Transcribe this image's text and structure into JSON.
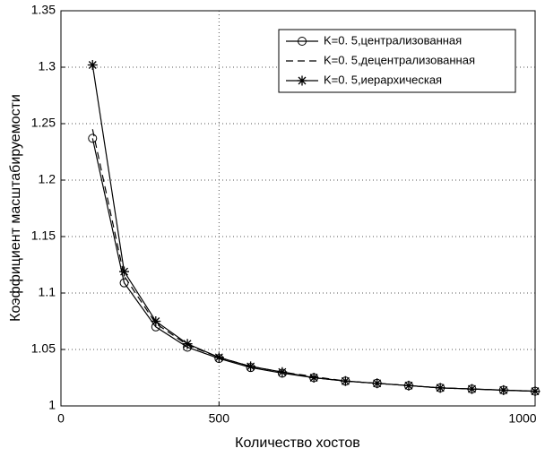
{
  "chart_data": {
    "type": "line",
    "xlabel": "Количество хостов",
    "ylabel": "Коэффициент масштабируемости",
    "x": [
      300,
      350,
      400,
      450,
      500,
      550,
      600,
      650,
      700,
      750,
      800,
      850,
      900,
      950,
      1000
    ],
    "series": [
      {
        "name": "K=0. 5,централизованная",
        "color": "#000000",
        "marker": "circle",
        "dash": "solid",
        "values": [
          1.237,
          1.109,
          1.07,
          1.052,
          1.042,
          1.034,
          1.029,
          1.025,
          1.022,
          1.02,
          1.018,
          1.016,
          1.015,
          1.014,
          1.013
        ]
      },
      {
        "name": "K=0. 5,децентрализованная",
        "color": "#000000",
        "marker": "none",
        "dash": "dashed",
        "values": [
          1.245,
          1.115,
          1.073,
          1.054,
          1.043,
          1.035,
          1.03,
          1.026,
          1.022,
          1.02,
          1.018,
          1.016,
          1.015,
          1.014,
          1.013
        ]
      },
      {
        "name": "K=0. 5,иерархическая",
        "color": "#000000",
        "marker": "star",
        "dash": "solid",
        "values": [
          1.302,
          1.119,
          1.075,
          1.055,
          1.043,
          1.035,
          1.03,
          1.025,
          1.022,
          1.02,
          1.018,
          1.016,
          1.015,
          1.014,
          1.013
        ]
      }
    ],
    "xlim": [
      250,
      1000
    ],
    "xticks": [
      {
        "value": 250,
        "label": "0"
      },
      500,
      1000
    ],
    "ylim": [
      1,
      1.35
    ],
    "yticks": [
      1,
      1.05,
      1.1,
      1.15,
      1.2,
      1.25,
      1.3,
      1.35
    ],
    "grid": true,
    "legend": "northeast"
  }
}
